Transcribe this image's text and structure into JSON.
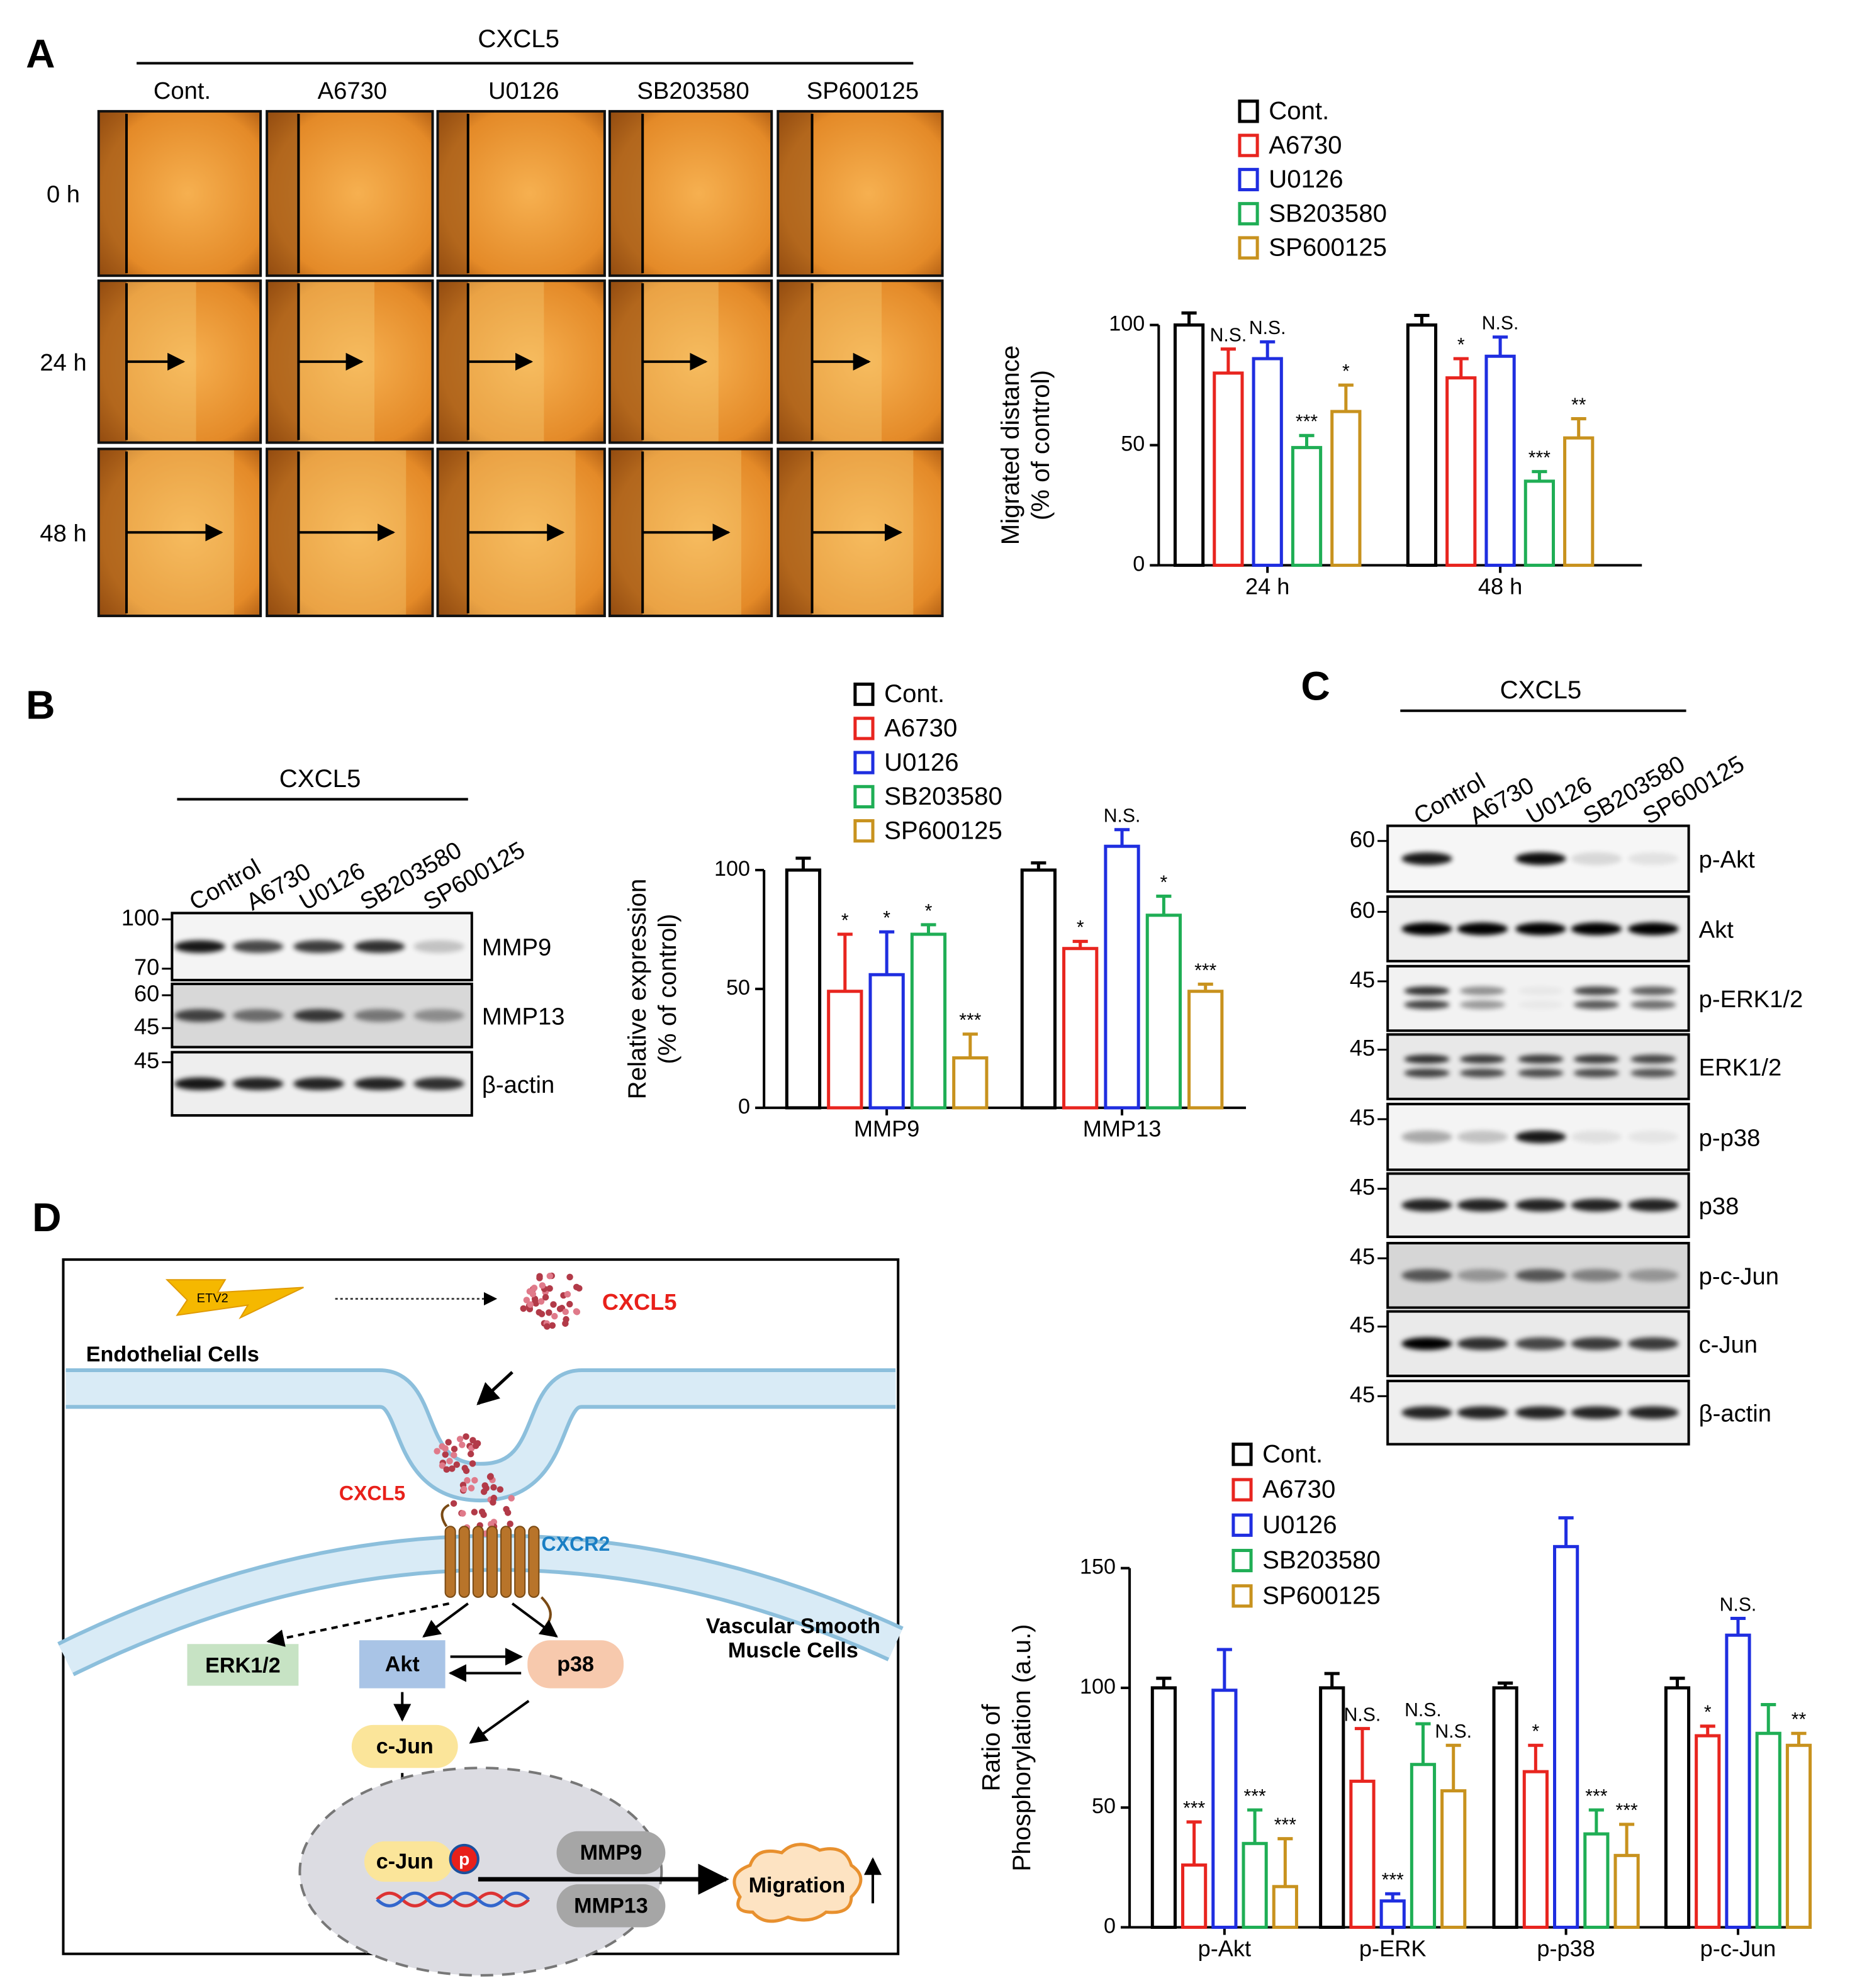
{
  "panel_labels": [
    "A",
    "B",
    "C",
    "D"
  ],
  "migration_assay": {
    "treatment": "CXCL5",
    "columns": [
      "Cont.",
      "A6730",
      "U0126",
      "SB203580",
      "SP600125"
    ],
    "rows": [
      "0 h",
      "24 h",
      "48 h"
    ]
  },
  "blot_B": {
    "treatment": "CXCL5",
    "lanes": [
      "Control",
      "A6730",
      "U0126",
      "SB203580",
      "SP600125"
    ],
    "markers": [
      100,
      70,
      60,
      45,
      45
    ],
    "bands": [
      "MMP9",
      "MMP13",
      "β-actin"
    ]
  },
  "blot_C": {
    "treatment": "CXCL5",
    "lanes": [
      "Control",
      "A6730",
      "U0126",
      "SB203580",
      "SP600125"
    ],
    "markers": [
      60,
      60,
      45,
      45,
      45,
      45,
      45,
      45,
      45
    ],
    "bands": [
      "p-Akt",
      "Akt",
      "p-ERK1/2",
      "ERK1/2",
      "p-p38",
      "p38",
      "p-c-Jun",
      "c-Jun",
      "β-actin"
    ]
  },
  "diagram": {
    "etv2": "ETV2",
    "cxcl5_top": "CXCL5",
    "endothelial": "Endothelial Cells",
    "cxcl5_receptor": "CXCL5",
    "cxcr2": "CXCR2",
    "vsmc": [
      "Vascular Smooth",
      "Muscle Cells"
    ],
    "erk": "ERK1/2",
    "akt": "Akt",
    "p38": "p38",
    "cjun": "c-Jun",
    "cjun_nucleus": "c-Jun",
    "p": "p",
    "mmp9": "MMP9",
    "mmp13": "MMP13",
    "migration": "Migration"
  },
  "chart_data": [
    {
      "type": "bar",
      "categories": [
        "24 h",
        "48 h"
      ],
      "ylabel": [
        "Migrated distance",
        "(% of control)"
      ],
      "ylim": [
        0,
        100
      ],
      "yticks": [
        0,
        50,
        100
      ],
      "legend": "top",
      "series": [
        {
          "name": "Cont.",
          "color": "#000000",
          "values": [
            100,
            100
          ],
          "errors": [
            5,
            4
          ],
          "annotations": [
            null,
            null
          ]
        },
        {
          "name": "A6730",
          "color": "#e8251f",
          "values": [
            80,
            78
          ],
          "errors": [
            10,
            8
          ],
          "annotations": [
            "N.S.",
            "*"
          ]
        },
        {
          "name": "U0126",
          "color": "#1f2ee0",
          "values": [
            86,
            87
          ],
          "errors": [
            7,
            8
          ],
          "annotations": [
            "N.S.",
            "N.S."
          ]
        },
        {
          "name": "SB203580",
          "color": "#1fae55",
          "values": [
            49,
            35
          ],
          "errors": [
            5,
            4
          ],
          "annotations": [
            "***",
            "***"
          ]
        },
        {
          "name": "SP600125",
          "color": "#c8921e",
          "values": [
            64,
            53
          ],
          "errors": [
            11,
            8
          ],
          "annotations": [
            "*",
            "**"
          ]
        }
      ]
    },
    {
      "type": "bar",
      "categories": [
        "MMP9",
        "MMP13"
      ],
      "ylabel": [
        "Relative expression",
        "(% of control)"
      ],
      "ylim": [
        0,
        100
      ],
      "yticks": [
        0,
        50,
        100
      ],
      "legend": "top",
      "series": [
        {
          "name": "Cont.",
          "color": "#000000",
          "values": [
            100,
            100
          ],
          "errors": [
            5,
            3
          ],
          "annotations": [
            null,
            null
          ]
        },
        {
          "name": "A6730",
          "color": "#e8251f",
          "values": [
            49,
            67
          ],
          "errors": [
            24,
            3
          ],
          "annotations": [
            "*",
            "*"
          ]
        },
        {
          "name": "U0126",
          "color": "#1f2ee0",
          "values": [
            56,
            110
          ],
          "errors": [
            18,
            7
          ],
          "annotations": [
            "*",
            "N.S."
          ]
        },
        {
          "name": "SB203580",
          "color": "#1fae55",
          "values": [
            73,
            81
          ],
          "errors": [
            4,
            8
          ],
          "annotations": [
            "*",
            "*"
          ]
        },
        {
          "name": "SP600125",
          "color": "#c8921e",
          "values": [
            21,
            49
          ],
          "errors": [
            10,
            3
          ],
          "annotations": [
            "***",
            "***"
          ]
        }
      ]
    },
    {
      "type": "bar",
      "categories": [
        "p-Akt",
        "p-ERK",
        "p-p38",
        "p-c-Jun"
      ],
      "ylabel": [
        "Ratio of",
        "Phosphorylation (a.u.)"
      ],
      "ylim": [
        0,
        150
      ],
      "yticks": [
        0,
        50,
        100,
        150
      ],
      "legend": "top",
      "series": [
        {
          "name": "Cont.",
          "color": "#000000",
          "values": [
            100,
            100,
            100,
            100
          ],
          "errors": [
            4,
            6,
            2,
            4
          ],
          "annotations": [
            null,
            null,
            null,
            null
          ]
        },
        {
          "name": "A6730",
          "color": "#e8251f",
          "values": [
            26,
            61,
            65,
            80
          ],
          "errors": [
            18,
            22,
            11,
            4
          ],
          "annotations": [
            "***",
            "N.S.",
            "*",
            "*"
          ]
        },
        {
          "name": "U0126",
          "color": "#1f2ee0",
          "values": [
            99,
            11,
            159,
            122
          ],
          "errors": [
            17,
            3,
            12,
            7
          ],
          "annotations": [
            null,
            "***",
            null,
            "N.S."
          ]
        },
        {
          "name": "SB203580",
          "color": "#1fae55",
          "values": [
            35,
            68,
            39,
            81
          ],
          "errors": [
            14,
            17,
            10,
            12
          ],
          "annotations": [
            "***",
            "N.S.",
            "***",
            null
          ]
        },
        {
          "name": "SP600125",
          "color": "#c8921e",
          "values": [
            17,
            57,
            30,
            76
          ],
          "errors": [
            20,
            19,
            13,
            5
          ],
          "annotations": [
            "***",
            "N.S.",
            "***",
            "**"
          ]
        }
      ]
    }
  ]
}
